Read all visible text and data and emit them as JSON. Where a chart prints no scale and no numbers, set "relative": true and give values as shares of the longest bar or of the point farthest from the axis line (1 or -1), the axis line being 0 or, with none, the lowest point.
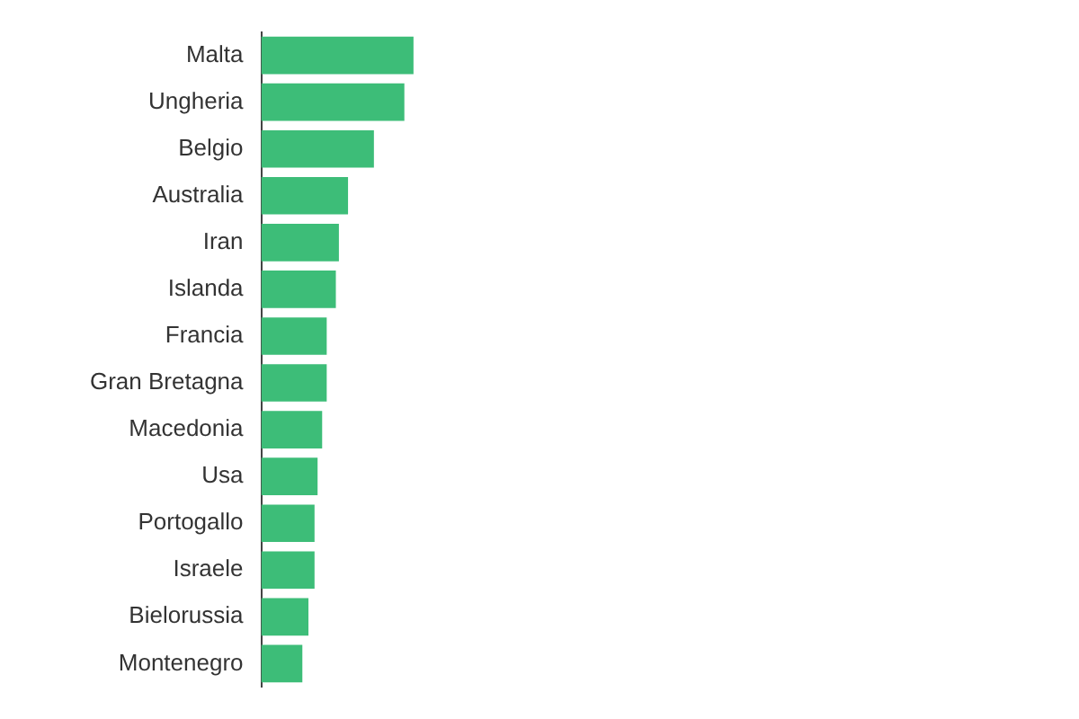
{
  "chart_data": {
    "type": "bar",
    "orientation": "horizontal",
    "relative": true,
    "categories": [
      "Malta",
      "Ungheria",
      "Belgio",
      "Australia",
      "Iran",
      "Islanda",
      "Francia",
      "Gran Bretagna",
      "Macedonia",
      "Usa",
      "Portogallo",
      "Israele",
      "Bielorussia",
      "Montenegro"
    ],
    "values": [
      1,
      0.94,
      0.74,
      0.57,
      0.51,
      0.49,
      0.43,
      0.43,
      0.4,
      0.37,
      0.35,
      0.35,
      0.31,
      0.27
    ],
    "color": "#3dbd78"
  }
}
